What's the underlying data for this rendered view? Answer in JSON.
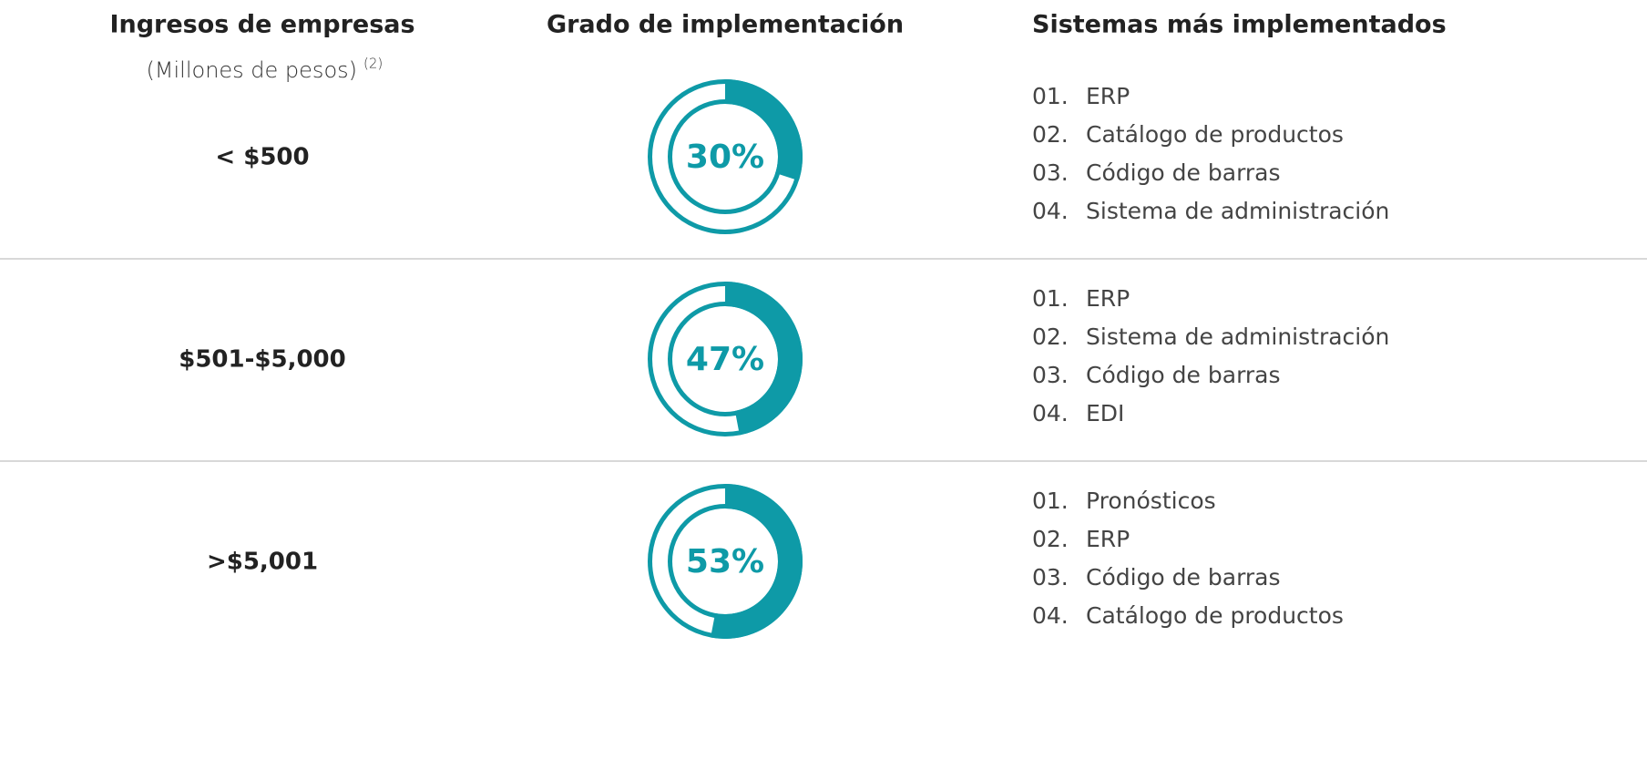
{
  "header": {
    "income": "Ingresos de empresas",
    "income_unit": "(Millones de pesos)",
    "income_note": "(2)",
    "degree": "Grado de implementación",
    "systems": "Sistemas más implementados"
  },
  "rows": [
    {
      "income": "< $500",
      "value": 30,
      "value_label": "30%",
      "systems": [
        {
          "rank": "01.",
          "name": "ERP"
        },
        {
          "rank": "02.",
          "name": "Catálogo de productos"
        },
        {
          "rank": "03.",
          "name": "Código de barras"
        },
        {
          "rank": "04.",
          "name": "Sistema de administración"
        }
      ]
    },
    {
      "income": "$501-$5,000",
      "value": 47,
      "value_label": "47%",
      "systems": [
        {
          "rank": "01.",
          "name": "ERP"
        },
        {
          "rank": "02.",
          "name": "Sistema de administración"
        },
        {
          "rank": "03.",
          "name": "Código de barras"
        },
        {
          "rank": "04.",
          "name": "EDI"
        }
      ]
    },
    {
      "income": ">$5,001",
      "value": 53,
      "value_label": "53%",
      "systems": [
        {
          "rank": "01.",
          "name": "Pronósticos"
        },
        {
          "rank": "02.",
          "name": "ERP"
        },
        {
          "rank": "03.",
          "name": "Código de barras"
        },
        {
          "rank": "04.",
          "name": "Catálogo de productos"
        }
      ]
    }
  ],
  "scale": [
    0,
    100
  ],
  "color": "#0e9aa7"
}
